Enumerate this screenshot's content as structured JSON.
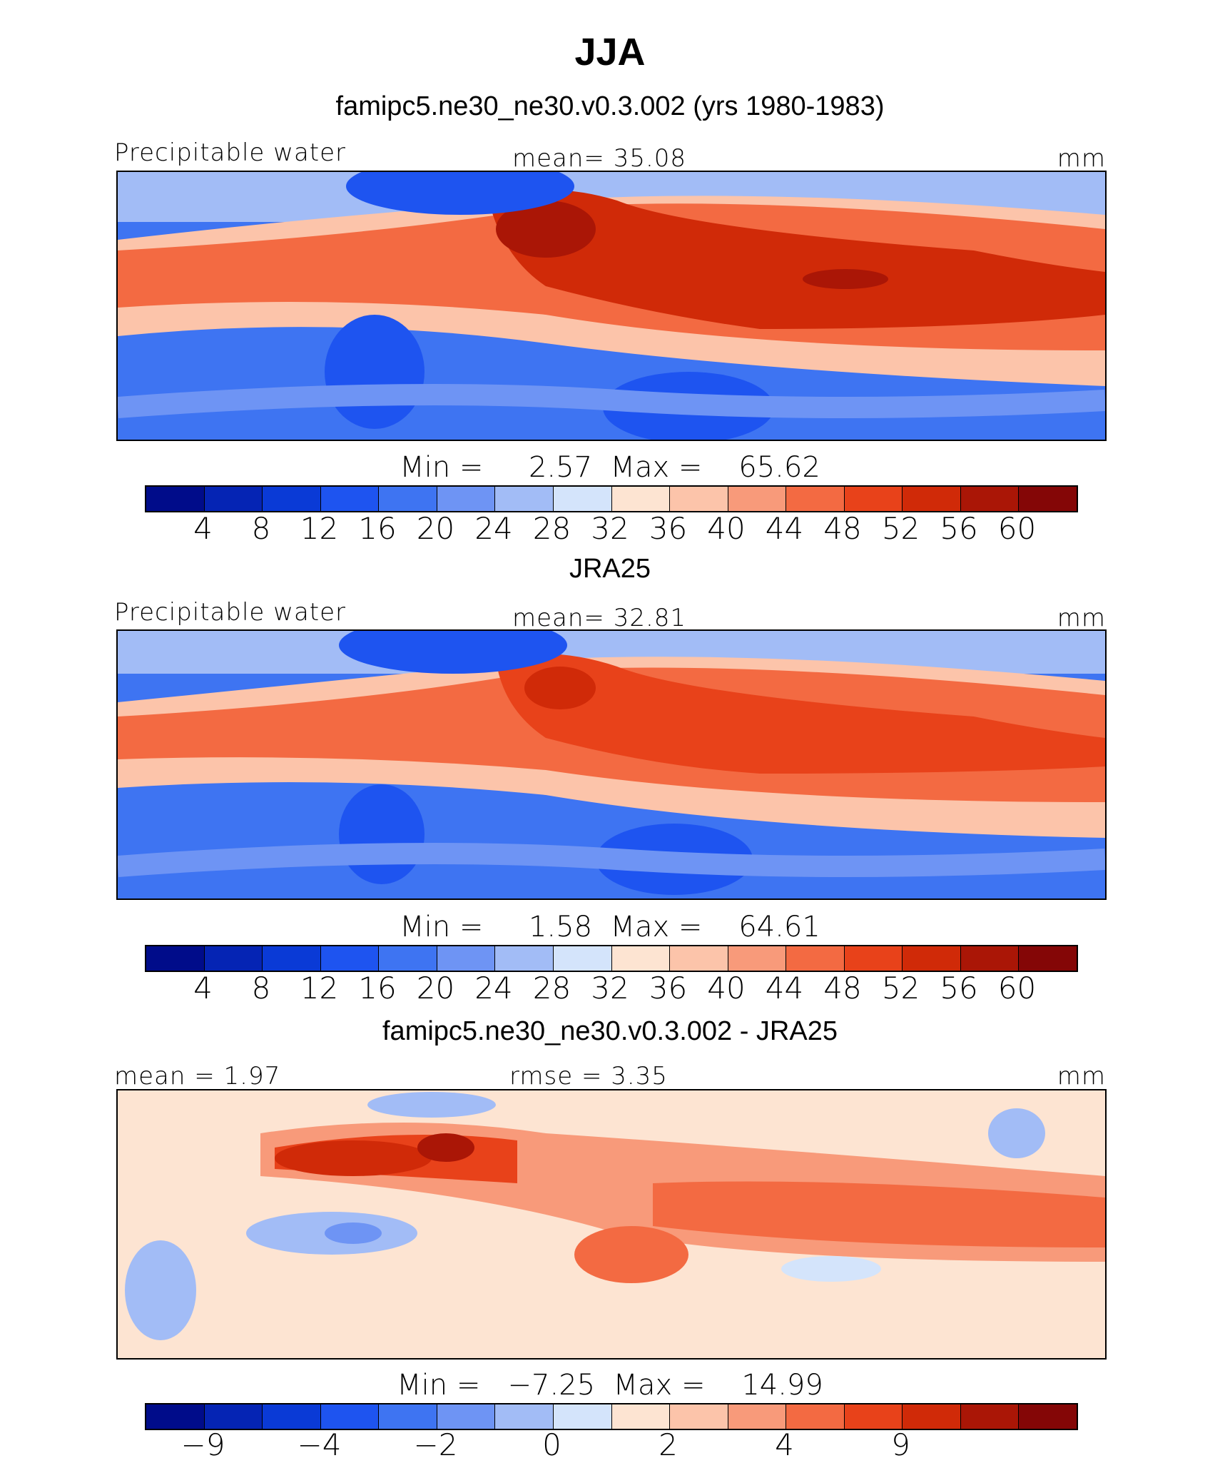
{
  "title": "JJA",
  "panels": [
    {
      "subtitle": "famipc5.ne30_ne30.v0.3.002 (yrs 1980-1983)",
      "left_label": "Precipitable water",
      "center_label": "mean=   35.08",
      "right_label": "mm",
      "minmax": "Min =     2.57  Max =    65.62",
      "colorbar": {
        "colors": [
          "#000c8a",
          "#0524b4",
          "#0a3ad6",
          "#1e54f0",
          "#3e74f2",
          "#6e94f4",
          "#a2bcf6",
          "#d4e4fb",
          "#fde4d2",
          "#fcc4aa",
          "#f89a7a",
          "#f36a42",
          "#e8421a",
          "#d02a08",
          "#aa1606",
          "#840606"
        ],
        "ticks": [
          "4",
          "8",
          "12",
          "16",
          "20",
          "24",
          "28",
          "32",
          "36",
          "40",
          "44",
          "48",
          "52",
          "56",
          "60"
        ]
      }
    },
    {
      "subtitle": "JRA25",
      "left_label": "Precipitable water",
      "center_label": "mean=   32.81",
      "right_label": "mm",
      "minmax": "Min =     1.58  Max =    64.61",
      "colorbar": {
        "colors": [
          "#000c8a",
          "#0524b4",
          "#0a3ad6",
          "#1e54f0",
          "#3e74f2",
          "#6e94f4",
          "#a2bcf6",
          "#d4e4fb",
          "#fde4d2",
          "#fcc4aa",
          "#f89a7a",
          "#f36a42",
          "#e8421a",
          "#d02a08",
          "#aa1606",
          "#840606"
        ],
        "ticks": [
          "4",
          "8",
          "12",
          "16",
          "20",
          "24",
          "28",
          "32",
          "36",
          "40",
          "44",
          "48",
          "52",
          "56",
          "60"
        ]
      }
    },
    {
      "subtitle": "famipc5.ne30_ne30.v0.3.002 - JRA25",
      "left_label": "mean =    1.97",
      "center_label": "rmse =     3.35",
      "right_label": "mm",
      "minmax": "Min =   −7.25  Max =    14.99",
      "colorbar": {
        "colors": [
          "#000c8a",
          "#0524b4",
          "#0a3ad6",
          "#1e54f0",
          "#3e74f2",
          "#6e94f4",
          "#a2bcf6",
          "#d4e4fb",
          "#fde4d2",
          "#fcc4aa",
          "#f89a7a",
          "#f36a42",
          "#e8421a",
          "#d02a08",
          "#aa1606",
          "#840606"
        ],
        "ticks": [
          "−9",
          "−4",
          "−2",
          "0",
          "2",
          "4",
          "9"
        ]
      }
    }
  ]
}
